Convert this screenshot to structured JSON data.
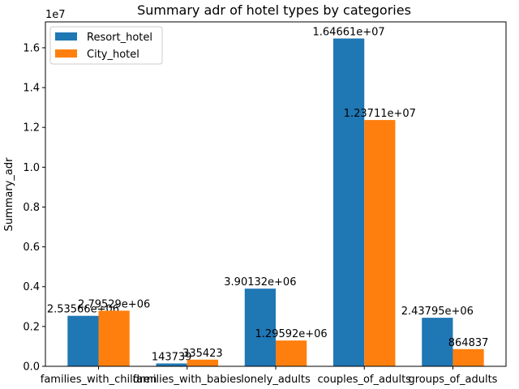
{
  "chart_data": {
    "type": "bar",
    "title": "Summary adr of hotel types by categories",
    "xlabel": "",
    "ylabel": "Summary_adr",
    "y_offset_label": "1e7",
    "ylim": [
      0,
      17300000
    ],
    "yticks": [
      0,
      2000000,
      4000000,
      6000000,
      8000000,
      10000000,
      12000000,
      14000000,
      16000000
    ],
    "ytick_labels": [
      "0.0",
      "0.2",
      "0.4",
      "0.6",
      "0.8",
      "1.0",
      "1.2",
      "1.4",
      "1.6"
    ],
    "categories": [
      "families_with_children",
      "families_with_babies",
      "lonely_adults",
      "couples_of_adults",
      "groups_of_adults"
    ],
    "series": [
      {
        "name": "Resort_hotel",
        "color": "#1f77b4",
        "values": [
          2535660,
          143739,
          3901320,
          16466100,
          2437950
        ],
        "labels": [
          "2.53566e+06",
          "143739",
          "3.90132e+06",
          "1.64661e+07",
          "2.43795e+06"
        ]
      },
      {
        "name": "City_hotel",
        "color": "#ff7f0e",
        "values": [
          2795290,
          335423,
          1295920,
          12371100,
          864837
        ],
        "labels": [
          "2.79529e+06",
          "335423",
          "1.29592e+06",
          "1.23711e+07",
          "864837"
        ]
      }
    ],
    "legend_position": "top-left",
    "grid": false
  }
}
